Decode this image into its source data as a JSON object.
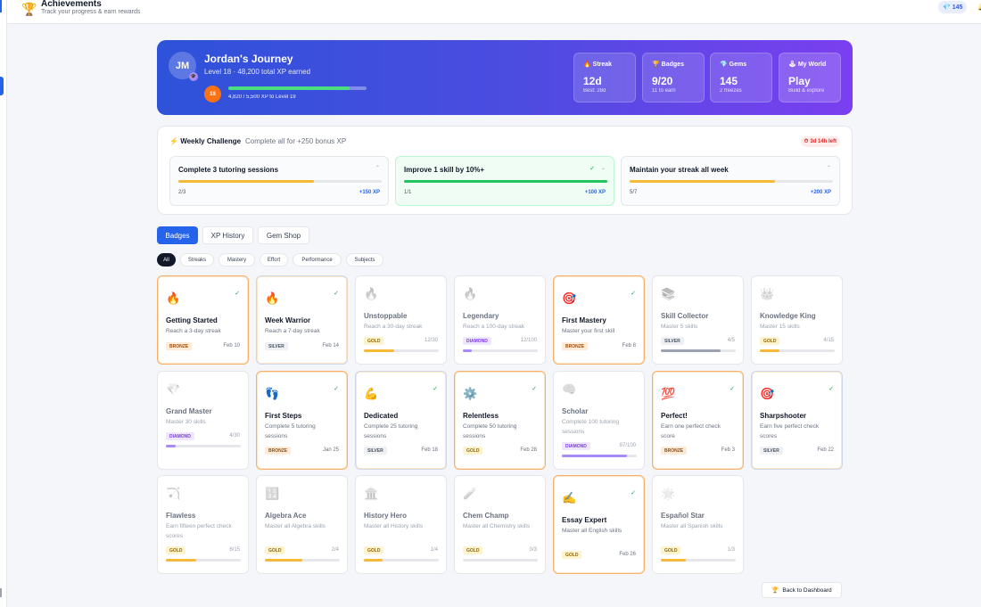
{
  "header": {
    "title": "Achievements",
    "subtitle": "Track your progress & earn rewards",
    "gems": "145",
    "gem_icon": "gem-icon"
  },
  "hero": {
    "initials": "JM",
    "name": "Jordan's Journey",
    "level_line": "Level 18 · 48,200 total XP earned",
    "level_badge": "18",
    "xp_text": "4,820 / 5,500 XP to Level 19",
    "xp_progress": 0.876,
    "stats": [
      {
        "icon": "🔥",
        "label": "Streak",
        "value": "12d",
        "sub": "Best: 28d"
      },
      {
        "icon": "🏆",
        "label": "Badges",
        "value": "9/20",
        "sub": "11 to earn"
      },
      {
        "icon": "💎",
        "label": "Gems",
        "value": "145",
        "sub": "2 freezes"
      },
      {
        "icon": "🕹",
        "label": "My World",
        "value": "Play",
        "sub": "Build & explore"
      }
    ]
  },
  "weekly": {
    "icon": "⚡",
    "title": "Weekly Challenge",
    "subtitle": "Complete all for +250 bonus XP",
    "time_left": "3d 14h left",
    "challenges": [
      {
        "title": "Complete 3 tutoring sessions",
        "progress": "2/3",
        "reward": "+150 XP",
        "ratio": 0.667,
        "done": false
      },
      {
        "title": "Improve 1 skill by 10%+",
        "progress": "1/1",
        "reward": "+100 XP",
        "ratio": 1.0,
        "done": true
      },
      {
        "title": "Maintain your streak all week",
        "progress": "5/7",
        "reward": "+200 XP",
        "ratio": 0.714,
        "done": false
      }
    ]
  },
  "tabs": [
    "Badges",
    "XP History",
    "Gem Shop"
  ],
  "filters": [
    "All",
    "Streaks",
    "Mastery",
    "Effort",
    "Performance",
    "Subjects"
  ],
  "badges": [
    {
      "icon": "🔥",
      "title": "Getting Started",
      "desc": "Reach a 3-day streak",
      "tier": "BRONZE",
      "meta": "Feb 10",
      "earned": true
    },
    {
      "icon": "🔥",
      "title": "Week Warrior",
      "desc": "Reach a 7-day streak",
      "tier": "SILVER",
      "meta": "Feb 14",
      "earned": true
    },
    {
      "icon": "🔥",
      "title": "Unstoppable",
      "desc": "Reach a 30-day streak",
      "tier": "GOLD",
      "meta": "12/30",
      "earned": false,
      "ratio": 0.4
    },
    {
      "icon": "🔥",
      "title": "Legendary",
      "desc": "Reach a 100-day streak",
      "tier": "DIAMOND",
      "meta": "12/100",
      "earned": false,
      "ratio": 0.12
    },
    {
      "icon": "🎯",
      "title": "First Mastery",
      "desc": "Master your first skill",
      "tier": "BRONZE",
      "meta": "Feb 8",
      "earned": true
    },
    {
      "icon": "📚",
      "title": "Skill Collector",
      "desc": "Master 5 skills",
      "tier": "SILVER",
      "meta": "4/5",
      "earned": false,
      "ratio": 0.8
    },
    {
      "icon": "👑",
      "title": "Knowledge King",
      "desc": "Master 15 skills",
      "tier": "GOLD",
      "meta": "4/15",
      "earned": false,
      "ratio": 0.267
    },
    {
      "icon": "💎",
      "title": "Grand Master",
      "desc": "Master 30 skills",
      "tier": "DIAMOND",
      "meta": "4/30",
      "earned": false,
      "ratio": 0.133
    },
    {
      "icon": "👣",
      "title": "First Steps",
      "desc": "Complete 5 tutoring sessions",
      "tier": "BRONZE",
      "meta": "Jan 25",
      "earned": true
    },
    {
      "icon": "💪",
      "title": "Dedicated",
      "desc": "Complete 25 tutoring sessions",
      "tier": "SILVER",
      "meta": "Feb 18",
      "earned": true
    },
    {
      "icon": "⚙️",
      "title": "Relentless",
      "desc": "Complete 50 tutoring sessions",
      "tier": "GOLD",
      "meta": "Feb 28",
      "earned": true
    },
    {
      "icon": "🧠",
      "title": "Scholar",
      "desc": "Complete 100 tutoring sessions",
      "tier": "DIAMOND",
      "meta": "87/100",
      "earned": false,
      "ratio": 0.87
    },
    {
      "icon": "💯",
      "title": "Perfect!",
      "desc": "Earn one perfect check score",
      "tier": "BRONZE",
      "meta": "Feb 3",
      "earned": true
    },
    {
      "icon": "🎯",
      "title": "Sharpshooter",
      "desc": "Earn five perfect check scores",
      "tier": "SILVER",
      "meta": "Feb 22",
      "earned": true
    },
    {
      "icon": "🏹",
      "title": "Flawless",
      "desc": "Earn fifteen perfect check scores",
      "tier": "GOLD",
      "meta": "6/15",
      "earned": false,
      "ratio": 0.4
    },
    {
      "icon": "🔢",
      "title": "Algebra Ace",
      "desc": "Master all Algebra skills",
      "tier": "GOLD",
      "meta": "2/4",
      "earned": false,
      "ratio": 0.5
    },
    {
      "icon": "🏛️",
      "title": "History Hero",
      "desc": "Master all History skills",
      "tier": "GOLD",
      "meta": "1/4",
      "earned": false,
      "ratio": 0.25
    },
    {
      "icon": "🧪",
      "title": "Chem Champ",
      "desc": "Master all Chemistry skills",
      "tier": "GOLD",
      "meta": "0/3",
      "earned": false,
      "ratio": 0
    },
    {
      "icon": "✍️",
      "title": "Essay Expert",
      "desc": "Master all English skills",
      "tier": "GOLD",
      "meta": "Feb 26",
      "earned": true
    },
    {
      "icon": "🌟",
      "title": "Español Star",
      "desc": "Master all Spanish skills",
      "tier": "GOLD",
      "meta": "1/3",
      "earned": false,
      "ratio": 0.333
    }
  ],
  "back_button": "Back to Dashboard",
  "colors": {
    "accent": "#2563eb",
    "earned_border": "#f5b168",
    "progress_green": "#4ade80"
  }
}
